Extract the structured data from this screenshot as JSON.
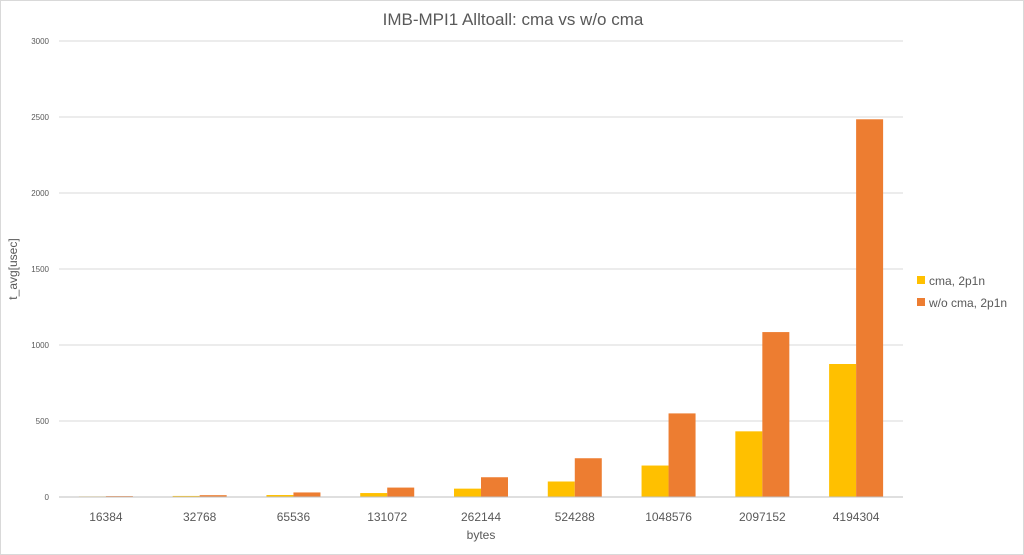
{
  "chart_data": {
    "type": "bar",
    "title": "IMB-MPI1 Alltoall: cma vs w/o cma",
    "xlabel": "bytes",
    "ylabel": "t_avg[usec]",
    "categories": [
      "16384",
      "32768",
      "65536",
      "131072",
      "262144",
      "524288",
      "1048576",
      "2097152",
      "4194304"
    ],
    "series": [
      {
        "name": "cma, 2p1n",
        "color": "#FFC000",
        "values": [
          4,
          7,
          13,
          26,
          55,
          102,
          207,
          432,
          875
        ]
      },
      {
        "name": "w/o cma, 2p1n",
        "color": "#ED7D31",
        "values": [
          6,
          12,
          30,
          62,
          130,
          255,
          550,
          1085,
          2485
        ]
      }
    ],
    "ylim": [
      0,
      3000
    ],
    "yticks": [
      0,
      500,
      1000,
      1500,
      2000,
      2500,
      3000
    ],
    "grid": true,
    "legend": "right"
  }
}
